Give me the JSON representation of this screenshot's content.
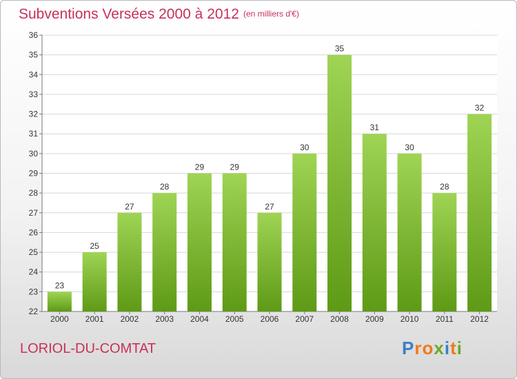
{
  "header": {
    "title": "Subventions Versées 2000 à 2012",
    "subtitle": "(en milliers d'€)"
  },
  "footer": {
    "city": "LORIOL-DU-COMTAT",
    "logo": [
      "P",
      "r",
      "o",
      "x",
      "i",
      "t",
      "i"
    ]
  },
  "colors": {
    "title": "#c8305a",
    "bar_light": "#9fd454",
    "bar_dark": "#5e9a16",
    "axis": "#777777",
    "grid": "#d6d6d6",
    "logo": [
      "#3a7fc4",
      "#f07a1a",
      "#f07a1a",
      "#6aa82c",
      "#3a7fc4",
      "#f07a1a",
      "#6aa82c"
    ]
  },
  "chart_data": {
    "type": "bar",
    "categories": [
      "2000",
      "2001",
      "2002",
      "2003",
      "2004",
      "2005",
      "2006",
      "2007",
      "2008",
      "2009",
      "2010",
      "2011",
      "2012"
    ],
    "values": [
      23,
      25,
      27,
      28,
      29,
      29,
      27,
      30,
      35,
      31,
      30,
      28,
      32
    ],
    "ylim": [
      22,
      36
    ],
    "yticks": [
      22,
      23,
      24,
      25,
      26,
      27,
      28,
      29,
      30,
      31,
      32,
      33,
      34,
      35,
      36
    ],
    "grid": true,
    "data_labels": true
  }
}
